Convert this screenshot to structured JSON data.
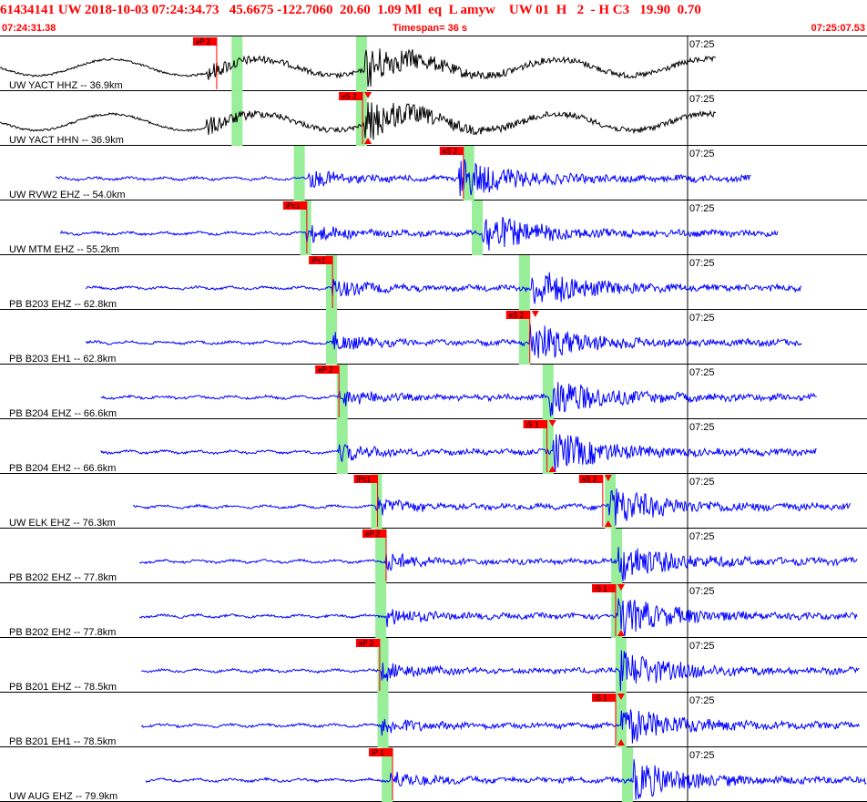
{
  "header": {
    "title": "61434141 UW 2018-10-03 07:24:34.73   45.6675 -122.7060  20.60  1.09 Ml  eq  L amyw    UW 01  H   2  - H C3   19.90  0.70",
    "start_time": "07:24:31.38",
    "timespan": "Timespan=  36 s",
    "end_time": "07:25:07.53"
  },
  "colors": {
    "accent": "#ff0000",
    "trace_first": "#000000",
    "trace": "#0000ff",
    "pick_window": "#99ee99",
    "pick_marker": "#ff0000"
  },
  "chart_data": {
    "type": "line",
    "x_range_seconds": [
      0,
      36
    ],
    "minute_label": "07:25",
    "traces": [
      {
        "label": "UW YACT HHZ -- 36.9km",
        "color": "black",
        "start": 0.0,
        "end": 33.4,
        "wave": 1,
        "pick": {
          "label": "eP 2",
          "t": 9.0,
          "tri_top": false,
          "tri_bot": false
        },
        "windows": [
          10.8,
          16.6
        ],
        "onset_p": 9.6,
        "onset_s": 17.0
      },
      {
        "label": "UW YACT HHN -- 36.9km",
        "color": "black",
        "start": 0.0,
        "end": 33.4,
        "wave": 1,
        "pick": {
          "label": "eS 2",
          "t": 15.8,
          "tri_top": true,
          "tri_bot": true
        },
        "windows": [
          10.8,
          16.6
        ],
        "onset_p": 9.6,
        "onset_s": 17.0
      },
      {
        "label": "UW RVW2 EHZ -- 54.0km",
        "color": "blue",
        "start": 2.6,
        "end": 35.0,
        "wave": 0,
        "pick": {
          "label": "eS 2",
          "t": 20.5,
          "tri_top": false,
          "tri_bot": false
        },
        "windows": [
          13.7,
          21.6
        ],
        "onset_p": 14.4,
        "onset_s": 21.4
      },
      {
        "label": "UW MTM EHZ -- 55.2km",
        "color": "blue",
        "start": 2.8,
        "end": 36.3,
        "wave": 0,
        "pick": {
          "label": "iPc1",
          "t": 13.2,
          "tri_top": false,
          "tri_bot": false
        },
        "windows": [
          14.0,
          22.0
        ],
        "onset_p": 14.3,
        "onset_s": 22.5
      },
      {
        "label": "PB B203 EHZ -- 62.8km",
        "color": "blue",
        "start": 4.0,
        "end": 37.4,
        "wave": 0,
        "pick": {
          "label": "iPc1",
          "t": 14.4,
          "tri_top": false,
          "tri_bot": false
        },
        "windows": [
          15.2,
          24.2
        ],
        "onset_p": 15.5,
        "onset_s": 24.8
      },
      {
        "label": "PB B203 EH1 -- 62.8km",
        "color": "blue",
        "start": 4.0,
        "end": 37.4,
        "wave": 0,
        "pick": {
          "label": "eS 2",
          "t": 23.6,
          "tri_top": true,
          "tri_bot": false
        },
        "windows": [
          15.2,
          24.2
        ],
        "onset_p": 15.5,
        "onset_s": 24.7
      },
      {
        "label": "PB B204 EHZ -- 66.6km",
        "color": "blue",
        "start": 4.7,
        "end": 38.1,
        "wave": 0,
        "pick": {
          "label": "eP 2",
          "t": 14.7,
          "tri_top": false,
          "tri_bot": false
        },
        "windows": [
          15.7,
          25.3
        ],
        "onset_p": 15.8,
        "onset_s": 25.6
      },
      {
        "label": "PB B204 EH2 -- 66.6km",
        "color": "blue",
        "start": 4.7,
        "end": 38.1,
        "wave": 0,
        "pick": {
          "label": "iS 1",
          "t": 24.4,
          "tri_top": true,
          "tri_bot": true
        },
        "windows": [
          15.7,
          25.3
        ],
        "onset_p": 15.8,
        "onset_s": 25.8
      },
      {
        "label": "UW ELK EHZ -- 76.3km",
        "color": "blue",
        "start": 6.2,
        "end": 39.7,
        "wave": 0,
        "pick": {
          "label": "iPc1",
          "t": 16.5,
          "tri_top": false,
          "tri_bot": false
        },
        "pick2": {
          "label": "eS 2",
          "t": 27.0,
          "tri_top": true,
          "tri_bot": true
        },
        "windows": [
          17.3,
          28.2
        ],
        "onset_p": 17.5,
        "onset_s": 28.4
      },
      {
        "label": "PB B202 EHZ -- 77.8km",
        "color": "blue",
        "start": 6.5,
        "end": 40.0,
        "wave": 0,
        "pick": {
          "label": "eP 2",
          "t": 16.9,
          "tri_top": false,
          "tri_bot": false
        },
        "windows": [
          17.5,
          28.5
        ],
        "onset_p": 18.0,
        "onset_s": 28.8
      },
      {
        "label": "PB B202 EH2 -- 77.8km",
        "color": "blue",
        "start": 6.5,
        "end": 40.0,
        "wave": 0,
        "pick": {
          "label": "iS 1",
          "t": 27.6,
          "tri_top": true,
          "tri_bot": true
        },
        "windows": [
          17.5,
          28.5
        ],
        "onset_p": 18.0,
        "onset_s": 28.8
      },
      {
        "label": "PB B201 EHZ -- 78.5km",
        "color": "blue",
        "start": 6.6,
        "end": 40.1,
        "wave": 0,
        "pick": {
          "label": "eP 2",
          "t": 16.6,
          "tri_top": false,
          "tri_bot": false
        },
        "windows": [
          17.6,
          28.7
        ],
        "onset_p": 17.8,
        "onset_s": 28.9
      },
      {
        "label": "PB B201 EH1 -- 78.5km",
        "color": "blue",
        "start": 6.6,
        "end": 40.1,
        "wave": 0,
        "pick": {
          "label": "iS 1",
          "t": 27.6,
          "tri_top": true,
          "tri_bot": true
        },
        "windows": [
          17.6,
          28.7
        ],
        "onset_p": 17.8,
        "onset_s": 28.9
      },
      {
        "label": "UW AUG EHZ -- 79.9km",
        "color": "blue",
        "start": 6.8,
        "end": 40.4,
        "wave": 0,
        "pick": {
          "label": "iP 1",
          "t": 17.2,
          "tri_top": false,
          "tri_bot": false
        },
        "windows": [
          17.8,
          29.0
        ],
        "onset_p": 18.2,
        "onset_s": 29.5
      }
    ]
  }
}
